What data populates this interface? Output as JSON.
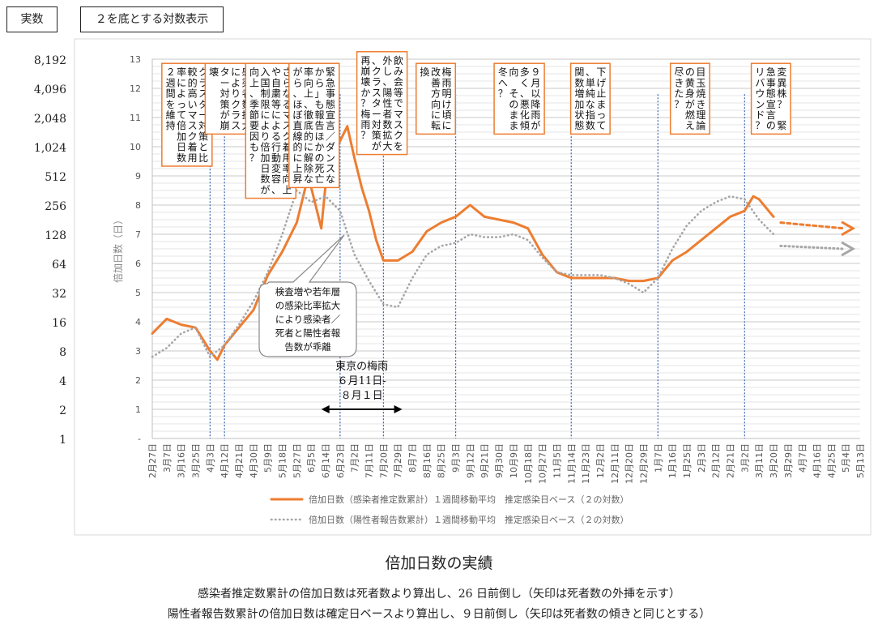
{
  "header": {
    "left_label": "実数",
    "right_label": "２を底とする対数表示"
  },
  "figure": {
    "title": "倍加日数の実績",
    "caption_line1": "感染者推定数累計の倍加日数は死者数より算出し、26 日前倒し（矢印は死者数の外挿を示す）",
    "caption_line2": "陽性者報告数累計の倍加日数は確定日ベースより算出し、９日前倒し（矢印は死者数の傾きと同じとする）"
  },
  "chart_data": {
    "type": "line",
    "ylabel": "倍加日数（日）",
    "ylim": [
      0,
      13
    ],
    "y_ticks": [
      "-",
      "1",
      "2",
      "3",
      "4",
      "5",
      "6",
      "7",
      "8",
      "9",
      "10",
      "11",
      "12",
      "13"
    ],
    "secondary_axis_labels": [
      "1",
      "2",
      "4",
      "8",
      "16",
      "32",
      "64",
      "128",
      "256",
      "512",
      "1,024",
      "2,048",
      "4,096",
      "8,192"
    ],
    "x_ticks": [
      "2月27日",
      "3月7日",
      "3月16日",
      "3月25日",
      "4月3日",
      "4月12日",
      "4月21日",
      "4月30日",
      "5月9日",
      "5月18日",
      "5月27日",
      "6月5日",
      "6月14日",
      "6月23日",
      "7月2日",
      "7月11日",
      "7月20日",
      "7月29日",
      "8月7日",
      "8月16日",
      "8月25日",
      "9月3日",
      "9月12日",
      "9月21日",
      "9月30日",
      "10月9日",
      "10月18日",
      "10月27日",
      "11月5日",
      "11月14日",
      "11月23日",
      "12月2日",
      "12月11日",
      "12月20日",
      "12月29日",
      "1月7日",
      "1月16日",
      "1月25日",
      "2月3日",
      "2月12日",
      "2月21日",
      "3月2日",
      "3月11日",
      "3月20日",
      "3月29日",
      "4月7日",
      "4月16日",
      "4月25日",
      "5月4日",
      "5月13日"
    ],
    "grid": true,
    "legend_position": "bottom",
    "series": [
      {
        "name": "倍加日数（感染者推定数累計）１週間移動平均　推定感染日ベース（２の対数）",
        "color": "#ed7d31",
        "style": "solid",
        "points": [
          [
            0,
            3.6
          ],
          [
            1,
            4.1
          ],
          [
            2,
            3.9
          ],
          [
            3,
            3.8
          ],
          [
            4,
            3.0
          ],
          [
            4.5,
            2.7
          ],
          [
            5,
            3.2
          ],
          [
            6,
            3.8
          ],
          [
            7,
            4.4
          ],
          [
            7.5,
            5.0
          ],
          [
            8,
            5.6
          ],
          [
            9,
            6.4
          ],
          [
            10,
            7.4
          ],
          [
            10.8,
            9.0
          ],
          [
            11.3,
            8.0
          ],
          [
            11.7,
            7.2
          ],
          [
            12,
            8.7
          ],
          [
            12.5,
            9.8
          ],
          [
            13,
            10.2
          ],
          [
            13.5,
            10.7
          ],
          [
            14,
            9.6
          ],
          [
            14.5,
            8.6
          ],
          [
            15,
            7.8
          ],
          [
            15.5,
            6.8
          ],
          [
            16,
            6.1
          ],
          [
            17,
            6.1
          ],
          [
            18,
            6.4
          ],
          [
            19,
            7.1
          ],
          [
            20,
            7.4
          ],
          [
            21,
            7.6
          ],
          [
            22,
            8.0
          ],
          [
            23,
            7.6
          ],
          [
            24,
            7.5
          ],
          [
            25,
            7.4
          ],
          [
            26,
            7.2
          ],
          [
            27,
            6.3
          ],
          [
            28,
            5.7
          ],
          [
            29,
            5.5
          ],
          [
            30,
            5.5
          ],
          [
            31,
            5.5
          ],
          [
            32,
            5.5
          ],
          [
            33,
            5.4
          ],
          [
            34,
            5.4
          ],
          [
            35,
            5.5
          ],
          [
            36,
            6.1
          ],
          [
            37,
            6.4
          ],
          [
            38,
            6.8
          ],
          [
            39,
            7.2
          ],
          [
            40,
            7.6
          ],
          [
            41,
            7.8
          ],
          [
            41.6,
            8.3
          ],
          [
            42,
            8.2
          ],
          [
            43,
            7.6
          ]
        ]
      },
      {
        "name": "倍加日数（陽性者報告数累計）１週間移動平均　推定感染日ベース（２の対数）",
        "color": "#a6a6a6",
        "style": "dotted",
        "points": [
          [
            0,
            2.8
          ],
          [
            1,
            3.1
          ],
          [
            2,
            3.6
          ],
          [
            3,
            3.8
          ],
          [
            4,
            2.8
          ],
          [
            5,
            3.2
          ],
          [
            6,
            3.9
          ],
          [
            7,
            4.7
          ],
          [
            8,
            5.7
          ],
          [
            9,
            7.0
          ],
          [
            10,
            8.5
          ],
          [
            11,
            8.1
          ],
          [
            12,
            8.3
          ],
          [
            13,
            7.8
          ],
          [
            14,
            6.3
          ],
          [
            15,
            5.4
          ],
          [
            16,
            4.6
          ],
          [
            17,
            4.5
          ],
          [
            18,
            5.5
          ],
          [
            19,
            6.3
          ],
          [
            20,
            6.6
          ],
          [
            21,
            6.7
          ],
          [
            22,
            7.0
          ],
          [
            23,
            6.9
          ],
          [
            24,
            6.9
          ],
          [
            25,
            7.0
          ],
          [
            26,
            6.8
          ],
          [
            27,
            6.2
          ],
          [
            28,
            5.7
          ],
          [
            29,
            5.6
          ],
          [
            30,
            5.6
          ],
          [
            31,
            5.6
          ],
          [
            32,
            5.5
          ],
          [
            33,
            5.3
          ],
          [
            34,
            5.0
          ],
          [
            35,
            5.5
          ],
          [
            36,
            6.5
          ],
          [
            37,
            7.3
          ],
          [
            38,
            7.8
          ],
          [
            39,
            8.1
          ],
          [
            40,
            8.3
          ],
          [
            41,
            8.2
          ],
          [
            42,
            7.5
          ],
          [
            43,
            7.0
          ]
        ]
      }
    ],
    "extrapolation_arrows": [
      {
        "series": 0,
        "from": [
          43.5,
          7.4
        ],
        "to": [
          48.5,
          7.2
        ]
      },
      {
        "series": 1,
        "from": [
          43.5,
          6.6
        ],
        "to": [
          48.5,
          6.5
        ]
      }
    ],
    "markers": [
      4,
      5,
      13,
      16,
      21,
      29,
      35,
      41
    ],
    "annotations": [
      {
        "text": "クラスター対策と比較的高いマスク着用率によって倍加日数２週間を維持",
        "x": 1,
        "y_top": 12.8
      },
      {
        "text": "感染者数拡大によりクラスター対策が崩壊",
        "x": 4,
        "y_top": 12.8
      },
      {
        "text": "さらなるマスク着用率向上や自粛等による行動変容、入国制限により倍加日数が向上、季節要因も？",
        "x": 6.8,
        "y_top": 12.8
      },
      {
        "text": "緊急事態宣言／ダンスなから」も報告ほかの死亡率向上、徹底的に解除ながら、ほぼ直線的に上昇",
        "x": 9.8,
        "y_top": 12.8
      },
      {
        "text": "飲み会等でマスクを外し、陽性者数拡大、クラスター対策が再崩壊か？梅雨？",
        "x": 14.5,
        "y_top": 13.2
      },
      {
        "text": "梅雨明け頃に改善方向に転換",
        "x": 18.6,
        "y_top": 12.8
      },
      {
        "text": "９月以降雨が多く、悪化傾向　そのまま冬へ？",
        "x": 24,
        "y_top": 12.8
      },
      {
        "text": "下げ止まって、単純な指数関数増加状態",
        "x": 29.3,
        "y_top": 12.8
      },
      {
        "text": "目玉焼き理論の黄身が燃え尽きた？",
        "x": 36.2,
        "y_top": 12.8
      },
      {
        "text": "変異株？　緊急事態宣言のリバウンド？",
        "x": 41.8,
        "y_top": 12.8
      }
    ],
    "callout": {
      "lines": [
        "検査増や若年層",
        "の感染比率拡大",
        "により感染者／",
        "死者と陽性者報",
        "告数が乖離"
      ]
    },
    "rainy_season": {
      "lines": [
        "東京の梅雨",
        "６月11日-",
        "８月１日"
      ],
      "x_from": 11.7,
      "x_to": 17.3
    }
  }
}
